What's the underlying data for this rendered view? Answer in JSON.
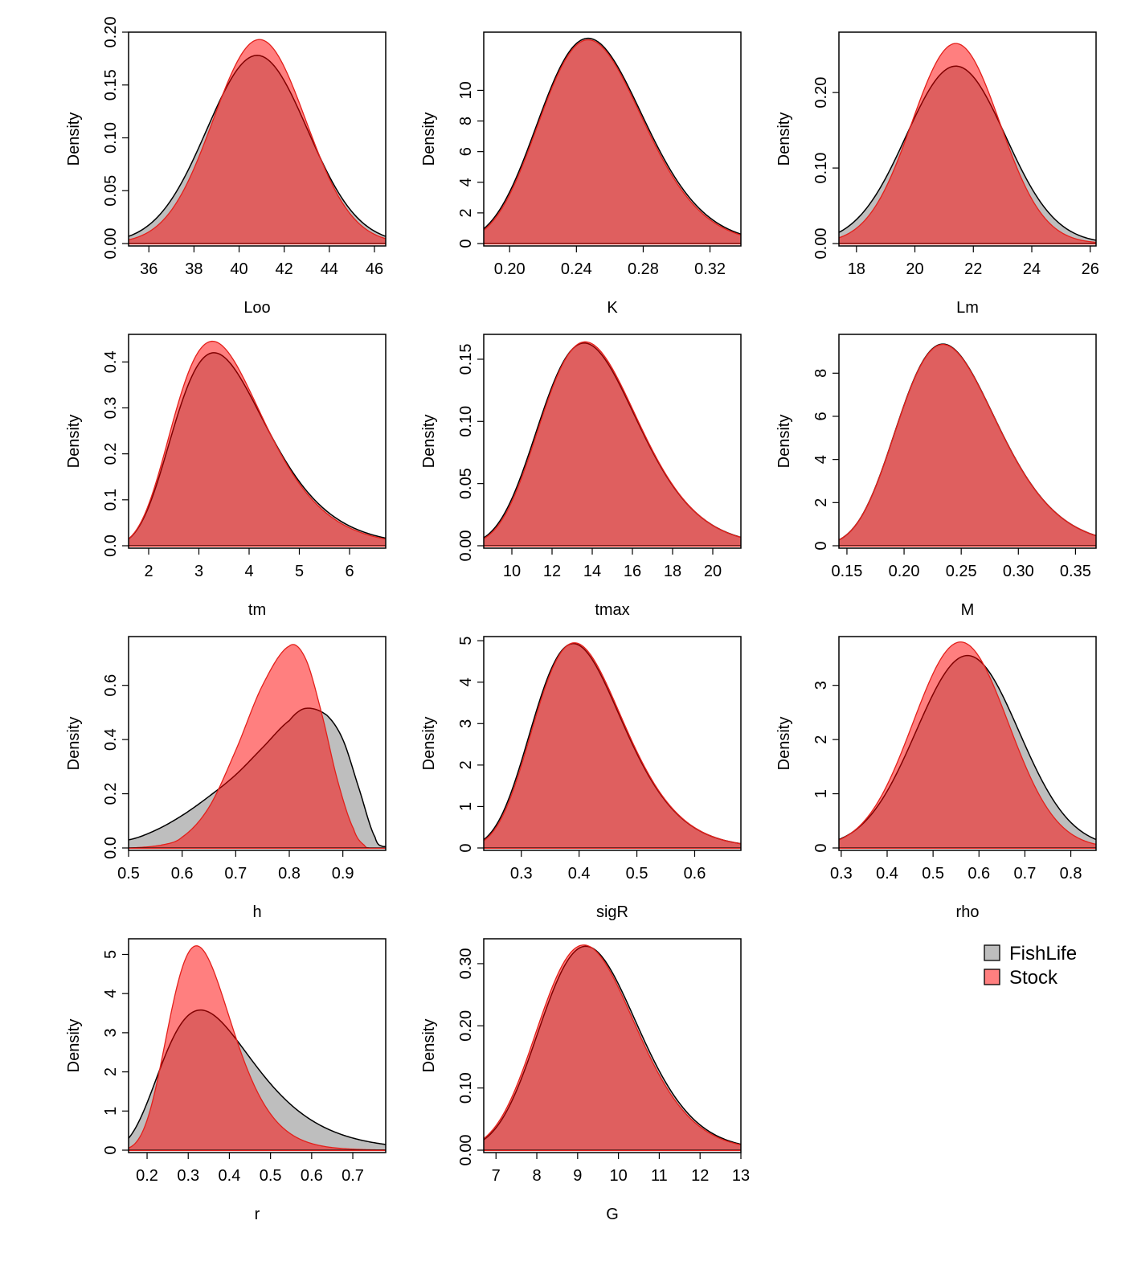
{
  "legend": {
    "placement": "bottom-right",
    "entries": [
      {
        "label": "FishLife",
        "color": "#bebebe"
      },
      {
        "label": "Stock",
        "color": "#ff7f7f"
      }
    ]
  },
  "colors": {
    "fishlife_fill": "#bebebe",
    "fishlife_line": "#000000",
    "stock_fill": "#ff0000",
    "stock_fill_opacity": 0.5,
    "stock_line": "#e3201b",
    "overlap_appearance": "#e05c5c"
  },
  "chart_data": [
    {
      "type": "area",
      "xlabel": "Loo",
      "ylabel": "Density",
      "xlim": [
        35.1,
        46.5
      ],
      "ylim": [
        0,
        0.2
      ],
      "xticks": [
        "36",
        "38",
        "40",
        "42",
        "44",
        "46"
      ],
      "xtick_values": [
        36,
        38,
        40,
        42,
        44,
        46
      ],
      "yticks": [
        "0.00",
        "0.05",
        "0.10",
        "0.15",
        "0.20"
      ],
      "ytick_values": [
        0,
        0.05,
        0.1,
        0.15,
        0.2
      ],
      "series": [
        {
          "name": "FishLife",
          "dist": "normal",
          "mode": 40.8,
          "sd": 2.23,
          "peak": 0.178
        },
        {
          "name": "Stock",
          "dist": "normal",
          "mode": 40.9,
          "sd": 2.05,
          "peak": 0.193
        }
      ]
    },
    {
      "type": "area",
      "xlabel": "K",
      "ylabel": "Density",
      "xlim": [
        0.1845,
        0.3385
      ],
      "ylim": [
        0,
        13.8
      ],
      "xticks": [
        "0.20",
        "0.24",
        "0.28",
        "0.32"
      ],
      "xtick_values": [
        0.2,
        0.24,
        0.28,
        0.32
      ],
      "yticks": [
        "0",
        "2",
        "4",
        "6",
        "8",
        "10"
      ],
      "ytick_values": [
        0,
        2,
        4,
        6,
        8,
        10
      ],
      "series": [
        {
          "name": "FishLife",
          "dist": "lognormal",
          "mode": 0.247,
          "sd": 0.127,
          "peak": 13.4
        },
        {
          "name": "Stock",
          "dist": "lognormal",
          "mode": 0.247,
          "sd": 0.125,
          "peak": 13.3
        }
      ]
    },
    {
      "type": "area",
      "xlabel": "Lm",
      "ylabel": "Density",
      "xlim": [
        17.4,
        26.2
      ],
      "ylim": [
        0,
        0.28
      ],
      "xticks": [
        "18",
        "20",
        "22",
        "24",
        "26"
      ],
      "xtick_values": [
        18,
        20,
        22,
        24,
        26
      ],
      "yticks": [
        "0.00",
        "0.10",
        "0.20"
      ],
      "ytick_values": [
        0,
        0.1,
        0.2
      ],
      "series": [
        {
          "name": "FishLife",
          "dist": "normal",
          "mode": 21.4,
          "sd": 1.7,
          "peak": 0.235
        },
        {
          "name": "Stock",
          "dist": "normal",
          "mode": 21.4,
          "sd": 1.5,
          "peak": 0.265
        }
      ]
    },
    {
      "type": "area",
      "xlabel": "tm",
      "ylabel": "Density",
      "xlim": [
        1.6,
        6.72
      ],
      "ylim": [
        0,
        0.46
      ],
      "xticks": [
        "2",
        "3",
        "4",
        "5",
        "6"
      ],
      "xtick_values": [
        2,
        3,
        4,
        5,
        6
      ],
      "yticks": [
        "0.0",
        "0.1",
        "0.2",
        "0.3",
        "0.4"
      ],
      "ytick_values": [
        0,
        0.1,
        0.2,
        0.3,
        0.4
      ],
      "series": [
        {
          "name": "FishLife",
          "dist": "lognormal",
          "mode": 3.3,
          "sd": 0.28,
          "peak": 0.42
        },
        {
          "name": "Stock",
          "dist": "lognormal",
          "mode": 3.27,
          "sd": 0.275,
          "peak": 0.445
        }
      ]
    },
    {
      "type": "area",
      "xlabel": "tmax",
      "ylabel": "Density",
      "xlim": [
        8.6,
        21.4
      ],
      "ylim": [
        0,
        0.17
      ],
      "xticks": [
        "10",
        "12",
        "14",
        "16",
        "18",
        "20"
      ],
      "xtick_values": [
        10,
        12,
        14,
        16,
        18,
        20
      ],
      "yticks": [
        "0.00",
        "0.05",
        "0.10",
        "0.15"
      ],
      "ytick_values": [
        0,
        0.05,
        0.1,
        0.15
      ],
      "series": [
        {
          "name": "FishLife",
          "dist": "lognormal",
          "mode": 13.6,
          "sd": 0.18,
          "peak": 0.163
        },
        {
          "name": "Stock",
          "dist": "lognormal",
          "mode": 13.65,
          "sd": 0.178,
          "peak": 0.164
        }
      ]
    },
    {
      "type": "area",
      "xlabel": "M",
      "ylabel": "Density",
      "xlim": [
        0.143,
        0.368
      ],
      "ylim": [
        0,
        9.8
      ],
      "xticks": [
        "0.15",
        "0.20",
        "0.25",
        "0.30",
        "0.35"
      ],
      "xtick_values": [
        0.15,
        0.2,
        0.25,
        0.3,
        0.35
      ],
      "yticks": [
        "0",
        "2",
        "4",
        "6",
        "8"
      ],
      "ytick_values": [
        0,
        2,
        4,
        6,
        8
      ],
      "series": [
        {
          "name": "FishLife",
          "dist": "lognormal",
          "mode": 0.234,
          "sd": 0.185,
          "peak": 9.35
        },
        {
          "name": "Stock",
          "dist": "lognormal",
          "mode": 0.234,
          "sd": 0.185,
          "peak": 9.33
        }
      ]
    },
    {
      "type": "area",
      "xlabel": "h",
      "ylabel": "Density",
      "xlim": [
        0.5,
        0.98
      ],
      "ylim": [
        0,
        0.78
      ],
      "xticks": [
        "0.5",
        "0.6",
        "0.7",
        "0.8",
        "0.9"
      ],
      "xtick_values": [
        0.5,
        0.6,
        0.7,
        0.8,
        0.9
      ],
      "yticks": [
        "0.0",
        "0.2",
        "0.4",
        "0.6"
      ],
      "ytick_values": [
        0,
        0.2,
        0.4,
        0.6
      ],
      "series": [
        {
          "name": "FishLife",
          "dist": "points",
          "peak": 0.515,
          "points": [
            [
              0.5,
              0.03
            ],
            [
              0.55,
              0.065
            ],
            [
              0.6,
              0.12
            ],
            [
              0.65,
              0.19
            ],
            [
              0.7,
              0.27
            ],
            [
              0.75,
              0.37
            ],
            [
              0.8,
              0.47
            ],
            [
              0.83,
              0.515
            ],
            [
              0.87,
              0.49
            ],
            [
              0.9,
              0.4
            ],
            [
              0.93,
              0.22
            ],
            [
              0.96,
              0.04
            ],
            [
              0.975,
              0.005
            ]
          ]
        },
        {
          "name": "Stock",
          "dist": "points",
          "peak": 0.745,
          "points": [
            [
              0.5,
              0.0
            ],
            [
              0.56,
              0.01
            ],
            [
              0.6,
              0.04
            ],
            [
              0.65,
              0.15
            ],
            [
              0.7,
              0.36
            ],
            [
              0.75,
              0.6
            ],
            [
              0.8,
              0.745
            ],
            [
              0.83,
              0.7
            ],
            [
              0.86,
              0.5
            ],
            [
              0.89,
              0.25
            ],
            [
              0.92,
              0.07
            ],
            [
              0.94,
              0.01
            ],
            [
              0.95,
              0.0
            ]
          ]
        }
      ]
    },
    {
      "type": "area",
      "xlabel": "sigR",
      "ylabel": "Density",
      "xlim": [
        0.235,
        0.68
      ],
      "ylim": [
        0,
        5.1
      ],
      "xticks": [
        "0.3",
        "0.4",
        "0.5",
        "0.6"
      ],
      "xtick_values": [
        0.3,
        0.4,
        0.5,
        0.6
      ],
      "yticks": [
        "0",
        "1",
        "2",
        "3",
        "4",
        "5"
      ],
      "ytick_values": [
        0,
        1,
        2,
        3,
        4,
        5
      ],
      "series": [
        {
          "name": "FishLife",
          "dist": "lognormal",
          "mode": 0.39,
          "sd": 0.2,
          "peak": 4.93
        },
        {
          "name": "Stock",
          "dist": "lognormal",
          "mode": 0.392,
          "sd": 0.198,
          "peak": 4.95
        }
      ]
    },
    {
      "type": "area",
      "xlabel": "rho",
      "ylabel": "Density",
      "xlim": [
        0.295,
        0.855
      ],
      "ylim": [
        0,
        3.9
      ],
      "xticks": [
        "0.3",
        "0.4",
        "0.5",
        "0.6",
        "0.7",
        "0.8"
      ],
      "xtick_values": [
        0.3,
        0.4,
        0.5,
        0.6,
        0.7,
        0.8
      ],
      "yticks": [
        "0",
        "1",
        "2",
        "3"
      ],
      "ytick_values": [
        0,
        1,
        2,
        3
      ],
      "series": [
        {
          "name": "FishLife",
          "dist": "normal",
          "mode": 0.575,
          "sd": 0.112,
          "peak": 3.55
        },
        {
          "name": "Stock",
          "dist": "normal",
          "mode": 0.56,
          "sd": 0.104,
          "peak": 3.8
        }
      ]
    },
    {
      "type": "area",
      "xlabel": "r",
      "ylabel": "Density",
      "xlim": [
        0.155,
        0.78
      ],
      "ylim": [
        0,
        5.4
      ],
      "xticks": [
        "0.2",
        "0.3",
        "0.4",
        "0.5",
        "0.6",
        "0.7"
      ],
      "xtick_values": [
        0.2,
        0.3,
        0.4,
        0.5,
        0.6,
        0.7
      ],
      "yticks": [
        "0",
        "1",
        "2",
        "3",
        "4",
        "5"
      ],
      "ytick_values": [
        0,
        1,
        2,
        3,
        4,
        5
      ],
      "series": [
        {
          "name": "FishLife",
          "dist": "lognormal",
          "mode": 0.33,
          "sd": 0.34,
          "peak": 3.58
        },
        {
          "name": "Stock",
          "dist": "lognormal",
          "mode": 0.32,
          "sd": 0.24,
          "peak": 5.22
        }
      ]
    },
    {
      "type": "area",
      "xlabel": "G",
      "ylabel": "Density",
      "xlim": [
        6.7,
        13.0
      ],
      "ylim": [
        0,
        0.34
      ],
      "xticks": [
        "7",
        "8",
        "9",
        "10",
        "11",
        "12",
        "13"
      ],
      "xtick_values": [
        7,
        8,
        9,
        10,
        11,
        12,
        13
      ],
      "yticks": [
        "0.00",
        "0.10",
        "0.20",
        "0.30"
      ],
      "ytick_values": [
        0,
        0.1,
        0.2,
        0.3
      ],
      "series": [
        {
          "name": "FishLife",
          "dist": "lognormal",
          "mode": 9.2,
          "sd": 0.13,
          "peak": 0.328
        },
        {
          "name": "Stock",
          "dist": "lognormal",
          "mode": 9.15,
          "sd": 0.13,
          "peak": 0.33
        }
      ]
    }
  ]
}
